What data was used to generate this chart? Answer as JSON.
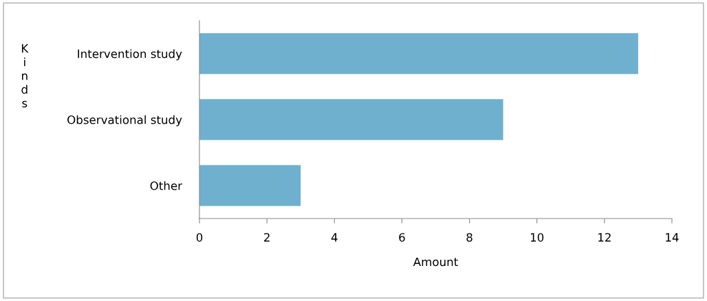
{
  "chart_data": {
    "type": "bar",
    "orientation": "horizontal",
    "xlabel": "Amount",
    "ylabel": "Kinds",
    "categories": [
      "Intervention study",
      "Observational study",
      "Other"
    ],
    "values": [
      13,
      9,
      3
    ],
    "color": "#6fb0cf",
    "xlim": [
      0,
      14
    ],
    "xticks": [
      0,
      2,
      4,
      6,
      8,
      10,
      12,
      14
    ],
    "grid": false,
    "legend": false
  }
}
